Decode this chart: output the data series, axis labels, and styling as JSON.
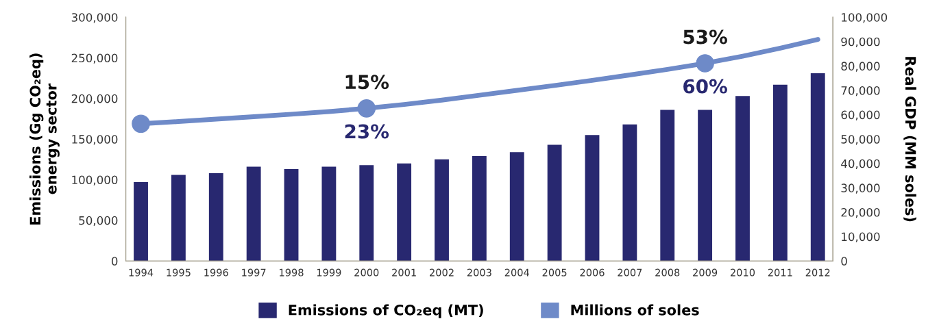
{
  "chart_data": {
    "type": "bar",
    "categories": [
      "1994",
      "1995",
      "1996",
      "1997",
      "1998",
      "1999",
      "2000",
      "2001",
      "2002",
      "2003",
      "2004",
      "2005",
      "2006",
      "2007",
      "2008",
      "2009",
      "2010",
      "2011",
      "2012"
    ],
    "ylabel": "Emissions (Gg CO₂eq)\nenergy sector",
    "y2label": "Real GDP (MM soles)",
    "series": [
      {
        "name": "Emissions of CO₂eq (MT)",
        "color": "#282870",
        "values": [
          97000,
          106000,
          108000,
          116000,
          113000,
          116000,
          118000,
          120000,
          125000,
          129000,
          134000,
          143000,
          155000,
          168000,
          186000,
          186000,
          203000,
          217000,
          231000
        ]
      },
      {
        "name": "Millions of soles",
        "type": "line",
        "axis": "y2",
        "color": "#6e8ac8",
        "values": [
          56300,
          57200,
          58200,
          59200,
          60200,
          61300,
          62600,
          64200,
          66000,
          68000,
          70000,
          72000,
          74100,
          76300,
          78600,
          81100,
          84000,
          87300,
          90900
        ]
      },
      {
        "type": "scatter",
        "axis": "y2",
        "color": "#6e8ac8",
        "marker": "circle",
        "values": [
          56300,
          null,
          null,
          null,
          null,
          null,
          62600,
          null,
          null,
          null,
          null,
          null,
          null,
          null,
          null,
          81100,
          null,
          null,
          null
        ]
      }
    ],
    "ylim": [
      0,
      300000
    ],
    "yticks": [
      0,
      {
        "value": 50000,
        "label": "50,000"
      },
      {
        "value": 100000,
        "label": "100,000"
      },
      {
        "value": 150000,
        "label": "150,000"
      },
      {
        "value": 200000,
        "label": "200,000"
      },
      {
        "value": 250000,
        "label": "250,000"
      },
      {
        "value": 300000,
        "label": "300,000"
      }
    ],
    "y2lim": [
      0,
      100000
    ],
    "y2ticks": [
      0,
      {
        "value": 10000,
        "label": "10,000"
      },
      {
        "value": 20000,
        "label": "20,000"
      },
      {
        "value": 30000,
        "label": "30,000"
      },
      {
        "value": 40000,
        "label": "40,000"
      },
      {
        "value": 50000,
        "label": "50,000"
      },
      {
        "value": 60000,
        "label": "60,000"
      },
      {
        "value": 70000,
        "label": "70,000"
      },
      {
        "value": 80000,
        "label": "80,000"
      },
      {
        "value": 90000,
        "label": "90,000"
      },
      {
        "value": 100000,
        "label": "100,000"
      }
    ],
    "annotations": [
      "15%",
      "23%",
      "53%",
      "60%"
    ],
    "grid": false,
    "legend": "bottom"
  }
}
